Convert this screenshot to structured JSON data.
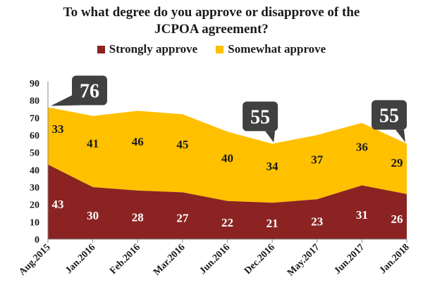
{
  "title_line1": "To what degree do you approve or disapprove of the",
  "title_line2": "JCPOA agreement?",
  "colors": {
    "strongly": "#8B2323",
    "somewhat": "#FFC000",
    "callout": "#404040",
    "grid": "#d9d9d9"
  },
  "chart_data": {
    "type": "area",
    "stacked": true,
    "categories": [
      "Aug.2015",
      "Jan.2016",
      "Feb.2016",
      "Mar.2016",
      "Jun.2016",
      "Dec.2016",
      "May.2017",
      "Jun.2017",
      "Jan.2018"
    ],
    "series": [
      {
        "name": "Strongly approve",
        "values": [
          43,
          30,
          28,
          27,
          22,
          21,
          23,
          31,
          26
        ]
      },
      {
        "name": "Somewhat approve",
        "values": [
          33,
          41,
          46,
          45,
          40,
          34,
          37,
          36,
          29
        ]
      }
    ],
    "y_ticks": [
      0,
      10,
      20,
      30,
      40,
      50,
      60,
      70,
      80,
      90
    ],
    "ylim": [
      0,
      90
    ],
    "legend_position": "top",
    "grid": false,
    "callouts": [
      {
        "category_index": 0,
        "label": "76"
      },
      {
        "category_index": 5,
        "label": "55"
      },
      {
        "category_index": 8,
        "label": "55"
      }
    ]
  }
}
